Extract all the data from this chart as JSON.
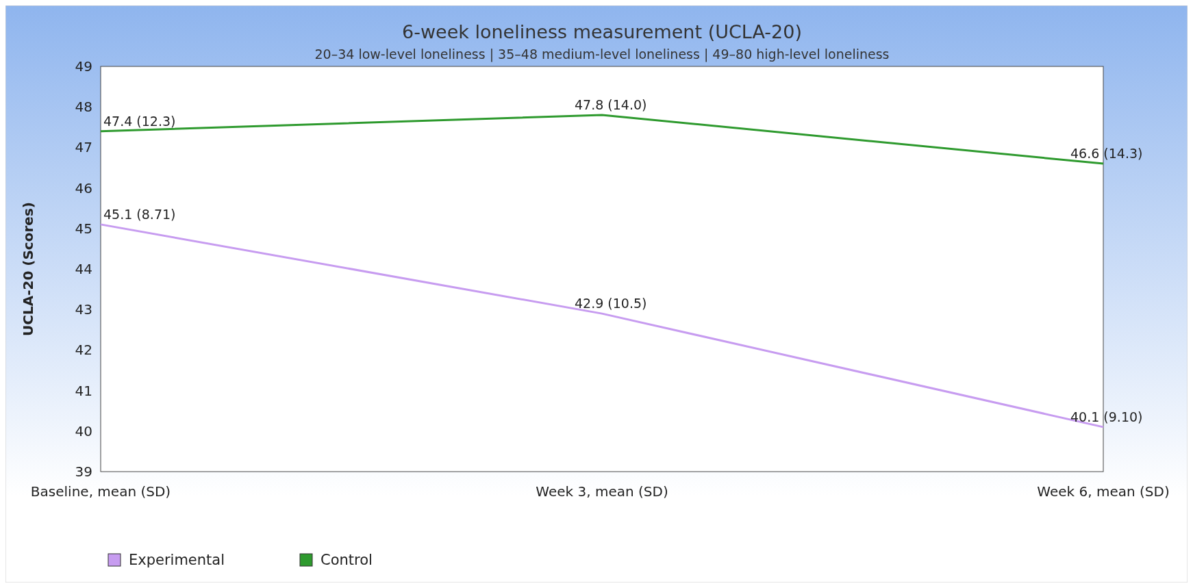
{
  "chart_data": {
    "type": "line",
    "title": "6-week loneliness measurement (UCLA-20)",
    "subtitle": "20–34 low-level loneliness | 35–48 medium-level loneliness | 49–80 high-level loneliness",
    "ylabel": "UCLA-20 (Scores)",
    "categories": [
      "Baseline, mean (SD)",
      "Week 3, mean (SD)",
      "Week 6, mean (SD)"
    ],
    "series": [
      {
        "name": "Experimental",
        "color": "#c79cf0",
        "values": [
          45.1,
          42.9,
          40.1
        ],
        "value_labels": [
          "45.1 (8.71)",
          "42.9 (10.5)",
          "40.1 (9.10)"
        ]
      },
      {
        "name": "Control",
        "color": "#2e9a2e",
        "values": [
          47.4,
          47.8,
          46.6
        ],
        "value_labels": [
          "47.4 (12.3)",
          "47.8 (14.0)",
          "46.6 (14.3)"
        ]
      }
    ],
    "ylim": [
      39,
      49
    ],
    "yticks": [
      39,
      40,
      41,
      42,
      43,
      44,
      45,
      46,
      47,
      48,
      49
    ],
    "legend": "bottom",
    "marker": "none",
    "line_style": "solid"
  }
}
